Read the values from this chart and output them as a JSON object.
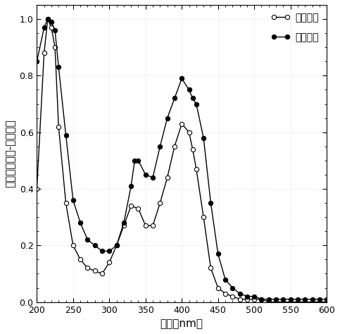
{
  "title": "",
  "xlabel": "波长（nm）",
  "ylabel": "归一化的紫外-可见吸收",
  "xlim": [
    200,
    600
  ],
  "ylim": [
    0,
    1.05
  ],
  "xticks": [
    200,
    250,
    300,
    350,
    400,
    450,
    500,
    550,
    600
  ],
  "yticks": [
    0,
    0.2,
    0.4,
    0.6,
    0.8,
    1
  ],
  "legend1": "乙醇溶液",
  "legend2": "固体薄膜",
  "ethanol_x": [
    200,
    210,
    215,
    220,
    225,
    230,
    240,
    250,
    260,
    270,
    280,
    290,
    300,
    310,
    320,
    330,
    340,
    350,
    360,
    370,
    380,
    390,
    400,
    410,
    415,
    420,
    430,
    440,
    450,
    460,
    470,
    480,
    490,
    500,
    510,
    520,
    530,
    540,
    550,
    560,
    570,
    580,
    590,
    600
  ],
  "ethanol_y": [
    0.4,
    0.88,
    1.0,
    0.97,
    0.9,
    0.62,
    0.35,
    0.2,
    0.15,
    0.12,
    0.11,
    0.1,
    0.14,
    0.2,
    0.27,
    0.34,
    0.33,
    0.27,
    0.27,
    0.35,
    0.44,
    0.55,
    0.63,
    0.6,
    0.54,
    0.47,
    0.3,
    0.12,
    0.05,
    0.03,
    0.02,
    0.01,
    0.01,
    0.01,
    0.01,
    0.0,
    0.0,
    0.0,
    0.0,
    0.0,
    0.0,
    0.0,
    0.0,
    0.0
  ],
  "film_x": [
    200,
    210,
    215,
    220,
    225,
    230,
    240,
    250,
    260,
    270,
    280,
    290,
    300,
    310,
    320,
    330,
    335,
    340,
    350,
    360,
    370,
    380,
    390,
    400,
    410,
    415,
    420,
    430,
    440,
    450,
    460,
    470,
    480,
    490,
    500,
    510,
    520,
    530,
    540,
    550,
    560,
    570,
    580,
    590,
    600
  ],
  "film_y": [
    0.85,
    0.97,
    1.0,
    0.99,
    0.96,
    0.83,
    0.59,
    0.36,
    0.28,
    0.22,
    0.2,
    0.18,
    0.18,
    0.2,
    0.28,
    0.41,
    0.5,
    0.5,
    0.45,
    0.44,
    0.55,
    0.65,
    0.72,
    0.79,
    0.75,
    0.72,
    0.7,
    0.58,
    0.35,
    0.17,
    0.08,
    0.05,
    0.03,
    0.02,
    0.02,
    0.01,
    0.01,
    0.01,
    0.01,
    0.01,
    0.01,
    0.01,
    0.01,
    0.01,
    0.01
  ],
  "line_color": "#000000",
  "bg_color": "#ffffff",
  "grid_color": "#cccccc",
  "marker_size": 4.5,
  "line_width": 1.0,
  "tick_label_size": 9,
  "axis_label_size": 11,
  "legend_fontsize": 10
}
